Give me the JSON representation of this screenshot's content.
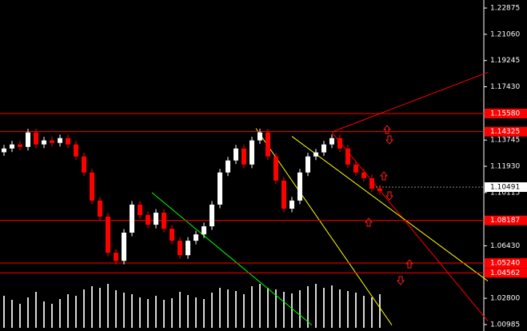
{
  "chart_data": {
    "type": "candlestick",
    "ylim": [
      1.0054,
      1.2343
    ],
    "yticks": [
      1.22875,
      {
        "value": 1.2106,
        "label": "1.21060"
      },
      1.19245,
      {
        "value": 1.1743,
        "label": "1.17430"
      },
      1.13745,
      {
        "value": 1.1193,
        "label": "1.11930"
      },
      1.10115,
      {
        "value": 1.0643,
        "label": "1.06430"
      },
      {
        "value": 1.028,
        "label": "1.02800"
      },
      1.00985
    ],
    "open": [
      1.129,
      1.1316,
      1.1344,
      1.1327,
      1.1427,
      1.1344,
      1.1372,
      1.1355,
      1.1388,
      1.1344,
      1.1261,
      1.115,
      1.0956,
      1.0845,
      1.0595,
      1.0539,
      1.0734,
      1.0928,
      1.0856,
      1.0789,
      1.0872,
      1.0761,
      1.0678,
      1.0578,
      1.0678,
      1.0722,
      1.0778,
      1.0928,
      1.115,
      1.1233,
      1.1316,
      1.1205,
      1.1372,
      1.1427,
      1.1261,
      1.1094,
      1.09,
      1.0956,
      1.115,
      1.1261,
      1.1289,
      1.1344,
      1.1388,
      1.1316,
      1.1205,
      1.115,
      1.1111,
      1.1039
    ],
    "high": [
      1.1341,
      1.1369,
      1.1369,
      1.1452,
      1.1452,
      1.1397,
      1.1397,
      1.1413,
      1.1413,
      1.1369,
      1.1286,
      1.1175,
      1.0981,
      1.087,
      1.062,
      1.0759,
      1.0953,
      1.0953,
      1.0881,
      1.0897,
      1.0897,
      1.0786,
      1.0703,
      1.0703,
      1.0747,
      1.0803,
      1.0953,
      1.1175,
      1.1258,
      1.1341,
      1.1341,
      1.1397,
      1.1452,
      1.1452,
      1.1286,
      1.1119,
      1.0981,
      1.1175,
      1.1286,
      1.1314,
      1.1369,
      1.1413,
      1.1413,
      1.1341,
      1.123,
      1.1175,
      1.1136,
      1.1064
    ],
    "low": [
      1.1265,
      1.1291,
      1.1302,
      1.1302,
      1.1319,
      1.1319,
      1.133,
      1.133,
      1.1319,
      1.1236,
      1.1125,
      1.0931,
      1.082,
      1.057,
      1.0514,
      1.0514,
      1.0709,
      1.0831,
      1.0764,
      1.0764,
      1.0736,
      1.0653,
      1.0553,
      1.0553,
      1.0653,
      1.0697,
      1.0753,
      1.0903,
      1.1125,
      1.1208,
      1.118,
      1.118,
      1.1347,
      1.1236,
      1.1069,
      1.0875,
      1.0875,
      1.0931,
      1.1125,
      1.1236,
      1.1264,
      1.1319,
      1.1291,
      1.118,
      1.1125,
      1.1086,
      1.1014,
      1.0997
    ],
    "close": [
      1.1316,
      1.1344,
      1.1327,
      1.1427,
      1.1344,
      1.1372,
      1.1355,
      1.1388,
      1.1344,
      1.1261,
      1.115,
      1.0956,
      1.0845,
      1.0595,
      1.0539,
      1.0734,
      1.0928,
      1.0856,
      1.0789,
      1.0872,
      1.0761,
      1.0678,
      1.0578,
      1.0678,
      1.0722,
      1.0778,
      1.0928,
      1.115,
      1.1233,
      1.1316,
      1.1205,
      1.1372,
      1.1427,
      1.1261,
      1.1094,
      1.09,
      1.0956,
      1.115,
      1.1261,
      1.1289,
      1.1344,
      1.1388,
      1.1316,
      1.1205,
      1.115,
      1.1111,
      1.1039,
      1.1022
    ],
    "volume": [
      40,
      35,
      30,
      38,
      45,
      33,
      30,
      36,
      42,
      40,
      48,
      52,
      50,
      55,
      47,
      44,
      42,
      38,
      36,
      40,
      35,
      37,
      45,
      41,
      38,
      36,
      44,
      50,
      48,
      46,
      42,
      52,
      55,
      50,
      48,
      45,
      43,
      47,
      52,
      55,
      50,
      53,
      48,
      46,
      44,
      40,
      38,
      42
    ],
    "up_color": "#ffffff",
    "down_color": "#ff0000",
    "levels": [
      {
        "value": 1.1558,
        "label": "1.15580"
      },
      {
        "value": 1.14325,
        "label": "1.14325"
      },
      {
        "value": 1.08187,
        "label": "1.08187"
      },
      {
        "value": 1.0524,
        "label": "1.05240"
      },
      {
        "value": 1.04562,
        "label": "1.04562"
      }
    ],
    "level_color": "#ff0000",
    "current_price": 1.10491,
    "trendlines": [
      {
        "color": "#ff0000",
        "x": [
          41,
          60.5
        ],
        "y": [
          1.143,
          1.1843
        ]
      },
      {
        "color": "#ffff00",
        "x": [
          31.5,
          48.5
        ],
        "y": [
          1.1455,
          1.0095
        ]
      },
      {
        "color": "#ff0000",
        "x": [
          41,
          60.5
        ],
        "y": [
          1.1427,
          1.0123
        ]
      },
      {
        "color": "#ffff00",
        "x": [
          36,
          60.5
        ],
        "y": [
          1.14,
          1.04
        ]
      },
      {
        "color": "#00ff00",
        "x": [
          18.5,
          38.5
        ],
        "y": [
          1.1011,
          1.0095
        ]
      }
    ]
  }
}
